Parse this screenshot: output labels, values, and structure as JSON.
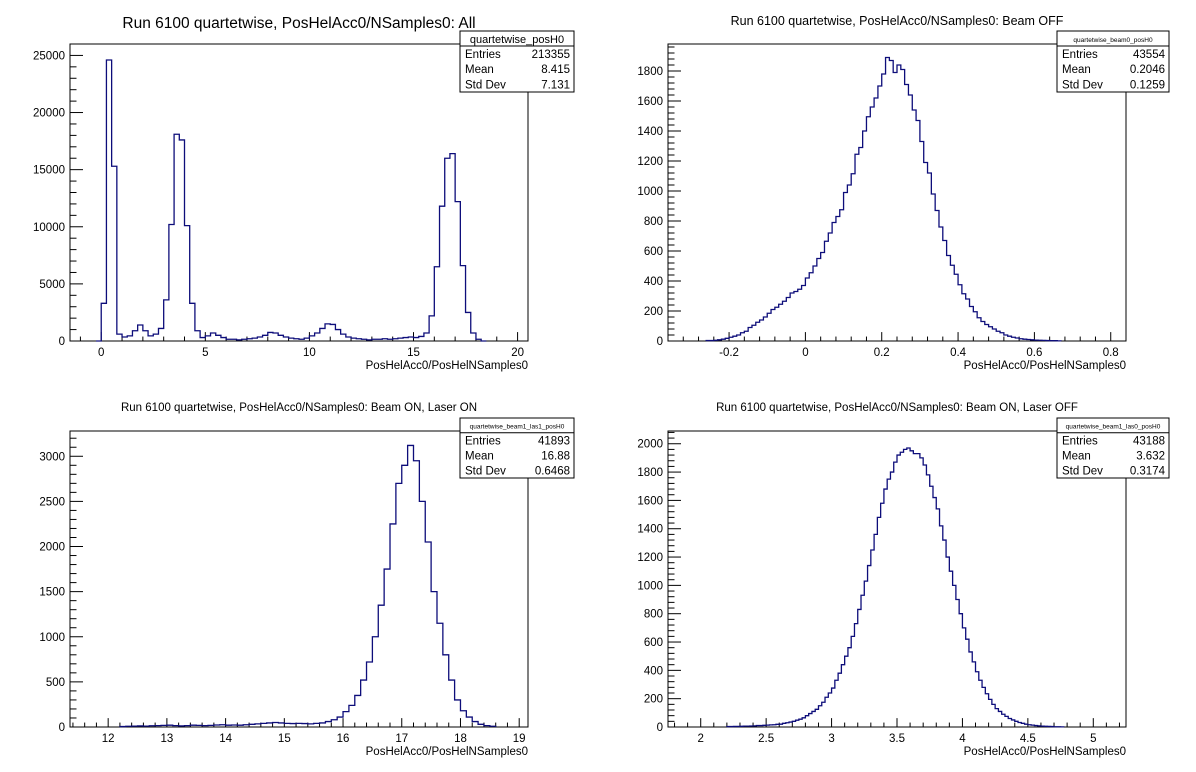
{
  "chart_data": [
    {
      "type": "histogram",
      "title": "Run 6100 quartetwise, PosHelAcc0/NSamples0: All",
      "xlabel": "PosHelAcc0/PosHelNSamples0",
      "ylabel": "",
      "xlim": [
        -1.5,
        20.5
      ],
      "ylim": [
        0,
        26000
      ],
      "xticks": [
        0,
        5,
        10,
        15,
        20
      ],
      "yticks": [
        0,
        5000,
        10000,
        15000,
        20000,
        25000
      ],
      "bin_width": 0.25,
      "stats": {
        "name": "quartetwise_posH0",
        "entries": "213355",
        "mean": "8.415",
        "std_dev": "7.131"
      },
      "bins": [
        [
          -0.25,
          0
        ],
        [
          0.0,
          3300
        ],
        [
          0.25,
          24600
        ],
        [
          0.5,
          15300
        ],
        [
          0.75,
          600
        ],
        [
          1.0,
          350
        ],
        [
          1.25,
          450
        ],
        [
          1.5,
          900
        ],
        [
          1.75,
          1400
        ],
        [
          2.0,
          900
        ],
        [
          2.25,
          450
        ],
        [
          2.5,
          600
        ],
        [
          2.75,
          1100
        ],
        [
          3.0,
          3600
        ],
        [
          3.25,
          10200
        ],
        [
          3.5,
          18100
        ],
        [
          3.75,
          17600
        ],
        [
          4.0,
          10100
        ],
        [
          4.25,
          3300
        ],
        [
          4.5,
          900
        ],
        [
          4.75,
          300
        ],
        [
          5.0,
          450
        ],
        [
          5.25,
          700
        ],
        [
          5.5,
          500
        ],
        [
          5.75,
          300
        ],
        [
          6.0,
          150
        ],
        [
          6.25,
          150
        ],
        [
          6.5,
          100
        ],
        [
          6.75,
          150
        ],
        [
          7.0,
          200
        ],
        [
          7.25,
          250
        ],
        [
          7.5,
          350
        ],
        [
          7.75,
          500
        ],
        [
          8.0,
          750
        ],
        [
          8.25,
          700
        ],
        [
          8.5,
          500
        ],
        [
          8.75,
          350
        ],
        [
          9.0,
          250
        ],
        [
          9.25,
          200
        ],
        [
          9.5,
          150
        ],
        [
          9.75,
          250
        ],
        [
          10.0,
          450
        ],
        [
          10.25,
          700
        ],
        [
          10.5,
          1100
        ],
        [
          10.75,
          1500
        ],
        [
          11.0,
          1450
        ],
        [
          11.25,
          1000
        ],
        [
          11.5,
          600
        ],
        [
          11.75,
          350
        ],
        [
          12.0,
          250
        ],
        [
          12.25,
          200
        ],
        [
          12.5,
          150
        ],
        [
          12.75,
          100
        ],
        [
          13.0,
          150
        ],
        [
          13.25,
          150
        ],
        [
          13.5,
          200
        ],
        [
          13.75,
          150
        ],
        [
          14.0,
          200
        ],
        [
          14.25,
          250
        ],
        [
          14.5,
          300
        ],
        [
          14.75,
          350
        ],
        [
          15.0,
          300
        ],
        [
          15.25,
          400
        ],
        [
          15.5,
          700
        ],
        [
          15.75,
          2200
        ],
        [
          16.0,
          6500
        ],
        [
          16.25,
          11800
        ],
        [
          16.5,
          16000
        ],
        [
          16.75,
          16400
        ],
        [
          17.0,
          12200
        ],
        [
          17.25,
          6600
        ],
        [
          17.5,
          2500
        ],
        [
          17.75,
          700
        ],
        [
          18.0,
          150
        ],
        [
          18.25,
          0
        ]
      ]
    },
    {
      "type": "histogram",
      "title": "Run 6100 quartetwise, PosHelAcc0/NSamples0: Beam OFF",
      "xlabel": "PosHelAcc0/PosHelNSamples0",
      "ylabel": "",
      "xlim": [
        -0.36,
        0.84
      ],
      "ylim": [
        0,
        1980
      ],
      "xticks": [
        -0.2,
        0,
        0.2,
        0.4,
        0.6,
        0.8
      ],
      "yticks": [
        0,
        200,
        400,
        600,
        800,
        1000,
        1200,
        1400,
        1600,
        1800
      ],
      "bin_width": 0.01,
      "stats": {
        "name": "quartetwise_beam0_posH0",
        "entries": "43554",
        "mean": "0.2046",
        "std_dev": "0.1259"
      },
      "bins": [
        [
          -0.26,
          3
        ],
        [
          -0.25,
          3
        ],
        [
          -0.24,
          5
        ],
        [
          -0.23,
          8
        ],
        [
          -0.22,
          12
        ],
        [
          -0.21,
          18
        ],
        [
          -0.2,
          25
        ],
        [
          -0.19,
          32
        ],
        [
          -0.18,
          40
        ],
        [
          -0.17,
          55
        ],
        [
          -0.16,
          65
        ],
        [
          -0.15,
          90
        ],
        [
          -0.14,
          105
        ],
        [
          -0.13,
          125
        ],
        [
          -0.12,
          140
        ],
        [
          -0.11,
          160
        ],
        [
          -0.1,
          185
        ],
        [
          -0.09,
          210
        ],
        [
          -0.08,
          225
        ],
        [
          -0.07,
          245
        ],
        [
          -0.06,
          265
        ],
        [
          -0.05,
          290
        ],
        [
          -0.04,
          320
        ],
        [
          -0.03,
          330
        ],
        [
          -0.02,
          345
        ],
        [
          -0.01,
          370
        ],
        [
          0.0,
          420
        ],
        [
          0.01,
          455
        ],
        [
          0.02,
          500
        ],
        [
          0.03,
          550
        ],
        [
          0.04,
          590
        ],
        [
          0.05,
          665
        ],
        [
          0.06,
          720
        ],
        [
          0.07,
          790
        ],
        [
          0.08,
          830
        ],
        [
          0.09,
          875
        ],
        [
          0.1,
          990
        ],
        [
          0.11,
          1040
        ],
        [
          0.12,
          1115
        ],
        [
          0.13,
          1245
        ],
        [
          0.14,
          1290
        ],
        [
          0.15,
          1400
        ],
        [
          0.16,
          1495
        ],
        [
          0.17,
          1560
        ],
        [
          0.18,
          1620
        ],
        [
          0.19,
          1700
        ],
        [
          0.2,
          1780
        ],
        [
          0.21,
          1890
        ],
        [
          0.22,
          1870
        ],
        [
          0.23,
          1790
        ],
        [
          0.24,
          1840
        ],
        [
          0.25,
          1810
        ],
        [
          0.26,
          1710
        ],
        [
          0.27,
          1640
        ],
        [
          0.28,
          1540
        ],
        [
          0.29,
          1470
        ],
        [
          0.3,
          1330
        ],
        [
          0.31,
          1190
        ],
        [
          0.32,
          1120
        ],
        [
          0.33,
          980
        ],
        [
          0.34,
          870
        ],
        [
          0.35,
          760
        ],
        [
          0.36,
          670
        ],
        [
          0.37,
          570
        ],
        [
          0.38,
          505
        ],
        [
          0.39,
          445
        ],
        [
          0.4,
          375
        ],
        [
          0.41,
          315
        ],
        [
          0.42,
          280
        ],
        [
          0.43,
          230
        ],
        [
          0.44,
          195
        ],
        [
          0.45,
          155
        ],
        [
          0.46,
          130
        ],
        [
          0.47,
          110
        ],
        [
          0.48,
          95
        ],
        [
          0.49,
          80
        ],
        [
          0.5,
          65
        ],
        [
          0.51,
          55
        ],
        [
          0.52,
          40
        ],
        [
          0.53,
          32
        ],
        [
          0.54,
          25
        ],
        [
          0.55,
          20
        ],
        [
          0.56,
          15
        ],
        [
          0.57,
          12
        ],
        [
          0.58,
          10
        ],
        [
          0.59,
          8
        ],
        [
          0.6,
          6
        ],
        [
          0.61,
          5
        ],
        [
          0.62,
          4
        ],
        [
          0.63,
          3
        ],
        [
          0.64,
          2
        ],
        [
          0.65,
          2
        ],
        [
          0.66,
          1
        ]
      ]
    },
    {
      "type": "histogram",
      "title": "Run 6100 quartetwise, PosHelAcc0/NSamples0: Beam ON, Laser ON",
      "xlabel": "PosHelAcc0/PosHelNSamples0",
      "ylabel": "",
      "xlim": [
        11.35,
        19.15
      ],
      "ylim": [
        0,
        3280
      ],
      "xticks": [
        12,
        13,
        14,
        15,
        16,
        17,
        18,
        19
      ],
      "yticks": [
        0,
        500,
        1000,
        1500,
        2000,
        2500,
        3000
      ],
      "bin_width": 0.1,
      "stats": {
        "name": "quartetwise_beam1_las1_posH0",
        "entries": "41893",
        "mean": "16.88",
        "std_dev": "0.6468"
      },
      "bins": [
        [
          12.2,
          5
        ],
        [
          12.3,
          8
        ],
        [
          12.4,
          10
        ],
        [
          12.5,
          12
        ],
        [
          12.6,
          10
        ],
        [
          12.7,
          14
        ],
        [
          12.8,
          15
        ],
        [
          12.9,
          18
        ],
        [
          13.0,
          20
        ],
        [
          13.1,
          15
        ],
        [
          13.2,
          12
        ],
        [
          13.3,
          15
        ],
        [
          13.4,
          20
        ],
        [
          13.5,
          18
        ],
        [
          13.6,
          15
        ],
        [
          13.7,
          18
        ],
        [
          13.8,
          22
        ],
        [
          13.9,
          25
        ],
        [
          14.0,
          20
        ],
        [
          14.1,
          22
        ],
        [
          14.2,
          20
        ],
        [
          14.3,
          25
        ],
        [
          14.4,
          30
        ],
        [
          14.5,
          35
        ],
        [
          14.6,
          40
        ],
        [
          14.7,
          45
        ],
        [
          14.8,
          50
        ],
        [
          14.9,
          45
        ],
        [
          15.0,
          40
        ],
        [
          15.1,
          38
        ],
        [
          15.2,
          40
        ],
        [
          15.3,
          38
        ],
        [
          15.4,
          35
        ],
        [
          15.5,
          40
        ],
        [
          15.6,
          45
        ],
        [
          15.7,
          60
        ],
        [
          15.8,
          80
        ],
        [
          15.9,
          110
        ],
        [
          16.0,
          170
        ],
        [
          16.1,
          240
        ],
        [
          16.2,
          350
        ],
        [
          16.3,
          520
        ],
        [
          16.4,
          720
        ],
        [
          16.5,
          1000
        ],
        [
          16.6,
          1350
        ],
        [
          16.7,
          1750
        ],
        [
          16.8,
          2250
        ],
        [
          16.9,
          2700
        ],
        [
          17.0,
          2900
        ],
        [
          17.1,
          3120
        ],
        [
          17.2,
          2950
        ],
        [
          17.3,
          2500
        ],
        [
          17.4,
          2050
        ],
        [
          17.5,
          1500
        ],
        [
          17.6,
          1150
        ],
        [
          17.7,
          800
        ],
        [
          17.8,
          520
        ],
        [
          17.9,
          300
        ],
        [
          18.0,
          180
        ],
        [
          18.1,
          110
        ],
        [
          18.2,
          60
        ],
        [
          18.3,
          30
        ],
        [
          18.4,
          15
        ],
        [
          18.5,
          8
        ]
      ]
    },
    {
      "type": "histogram",
      "title": "Run 6100 quartetwise, PosHelAcc0/NSamples0: Beam ON, Laser OFF",
      "xlabel": "PosHelAcc0/PosHelNSamples0",
      "ylabel": "",
      "xlim": [
        1.75,
        5.25
      ],
      "ylim": [
        0,
        2090
      ],
      "xticks": [
        2,
        2.5,
        3,
        3.5,
        4,
        4.5,
        5
      ],
      "yticks": [
        0,
        200,
        400,
        600,
        800,
        1000,
        1200,
        1400,
        1600,
        1800,
        2000
      ],
      "bin_width": 0.025,
      "stats": {
        "name": "quartetwise_beam1_las0_posH0",
        "entries": "43188",
        "mean": "3.632",
        "std_dev": "0.3174"
      },
      "bins": [
        [
          2.2,
          3
        ],
        [
          2.225,
          3
        ],
        [
          2.25,
          4
        ],
        [
          2.275,
          4
        ],
        [
          2.3,
          5
        ],
        [
          2.325,
          6
        ],
        [
          2.35,
          6
        ],
        [
          2.375,
          7
        ],
        [
          2.4,
          8
        ],
        [
          2.425,
          10
        ],
        [
          2.45,
          10
        ],
        [
          2.475,
          12
        ],
        [
          2.5,
          13
        ],
        [
          2.525,
          15
        ],
        [
          2.55,
          16
        ],
        [
          2.575,
          19
        ],
        [
          2.6,
          20
        ],
        [
          2.625,
          26
        ],
        [
          2.65,
          30
        ],
        [
          2.675,
          35
        ],
        [
          2.7,
          40
        ],
        [
          2.725,
          48
        ],
        [
          2.75,
          55
        ],
        [
          2.775,
          65
        ],
        [
          2.8,
          80
        ],
        [
          2.825,
          95
        ],
        [
          2.85,
          110
        ],
        [
          2.875,
          125
        ],
        [
          2.9,
          150
        ],
        [
          2.925,
          175
        ],
        [
          2.95,
          210
        ],
        [
          2.975,
          240
        ],
        [
          3.0,
          275
        ],
        [
          3.025,
          330
        ],
        [
          3.05,
          380
        ],
        [
          3.075,
          440
        ],
        [
          3.1,
          500
        ],
        [
          3.125,
          560
        ],
        [
          3.15,
          640
        ],
        [
          3.175,
          730
        ],
        [
          3.2,
          830
        ],
        [
          3.225,
          930
        ],
        [
          3.25,
          1030
        ],
        [
          3.275,
          1140
        ],
        [
          3.3,
          1250
        ],
        [
          3.325,
          1360
        ],
        [
          3.35,
          1480
        ],
        [
          3.375,
          1580
        ],
        [
          3.4,
          1680
        ],
        [
          3.425,
          1750
        ],
        [
          3.45,
          1800
        ],
        [
          3.475,
          1870
        ],
        [
          3.5,
          1920
        ],
        [
          3.525,
          1940
        ],
        [
          3.55,
          1960
        ],
        [
          3.575,
          1970
        ],
        [
          3.6,
          1950
        ],
        [
          3.625,
          1930
        ],
        [
          3.65,
          1930
        ],
        [
          3.675,
          1900
        ],
        [
          3.7,
          1850
        ],
        [
          3.725,
          1780
        ],
        [
          3.75,
          1700
        ],
        [
          3.775,
          1620
        ],
        [
          3.8,
          1540
        ],
        [
          3.825,
          1420
        ],
        [
          3.85,
          1320
        ],
        [
          3.875,
          1200
        ],
        [
          3.9,
          1100
        ],
        [
          3.925,
          1000
        ],
        [
          3.95,
          900
        ],
        [
          3.975,
          800
        ],
        [
          4.0,
          700
        ],
        [
          4.025,
          620
        ],
        [
          4.05,
          530
        ],
        [
          4.075,
          460
        ],
        [
          4.1,
          390
        ],
        [
          4.125,
          330
        ],
        [
          4.15,
          280
        ],
        [
          4.175,
          235
        ],
        [
          4.2,
          195
        ],
        [
          4.225,
          160
        ],
        [
          4.25,
          130
        ],
        [
          4.275,
          110
        ],
        [
          4.3,
          90
        ],
        [
          4.325,
          75
        ],
        [
          4.35,
          60
        ],
        [
          4.375,
          50
        ],
        [
          4.4,
          40
        ],
        [
          4.425,
          32
        ],
        [
          4.45,
          26
        ],
        [
          4.475,
          20
        ],
        [
          4.5,
          16
        ],
        [
          4.525,
          13
        ],
        [
          4.55,
          10
        ],
        [
          4.575,
          8
        ],
        [
          4.6,
          6
        ],
        [
          4.625,
          5
        ],
        [
          4.65,
          4
        ],
        [
          4.675,
          3
        ],
        [
          4.7,
          2
        ],
        [
          4.725,
          2
        ],
        [
          4.75,
          1
        ]
      ]
    }
  ]
}
